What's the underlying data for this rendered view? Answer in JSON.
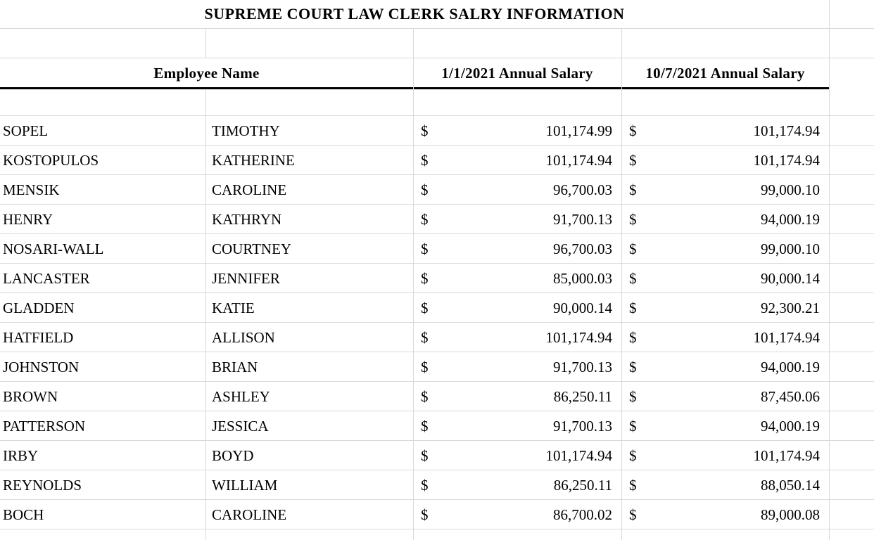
{
  "sheet": {
    "title": "SUPREME COURT LAW CLERK SALRY INFORMATION",
    "columns": {
      "employee_name": "Employee Name",
      "salary_jan": "1/1/2021 Annual Salary",
      "salary_oct": "10/7/2021 Annual Salary"
    },
    "currency_symbol": "$",
    "rows": [
      {
        "last": "SOPEL",
        "first": "TIMOTHY",
        "jan": "101,174.99",
        "oct": "101,174.94"
      },
      {
        "last": "KOSTOPULOS",
        "first": "KATHERINE",
        "jan": "101,174.94",
        "oct": "101,174.94"
      },
      {
        "last": "MENSIK",
        "first": "CAROLINE",
        "jan": "96,700.03",
        "oct": "99,000.10"
      },
      {
        "last": "HENRY",
        "first": "KATHRYN",
        "jan": "91,700.13",
        "oct": "94,000.19"
      },
      {
        "last": "NOSARI-WALL",
        "first": "COURTNEY",
        "jan": "96,700.03",
        "oct": "99,000.10"
      },
      {
        "last": "LANCASTER",
        "first": "JENNIFER",
        "jan": "85,000.03",
        "oct": "90,000.14"
      },
      {
        "last": "GLADDEN",
        "first": "KATIE",
        "jan": "90,000.14",
        "oct": "92,300.21"
      },
      {
        "last": "HATFIELD",
        "first": "ALLISON",
        "jan": "101,174.94",
        "oct": "101,174.94"
      },
      {
        "last": "JOHNSTON",
        "first": "BRIAN",
        "jan": "91,700.13",
        "oct": "94,000.19"
      },
      {
        "last": "BROWN",
        "first": "ASHLEY",
        "jan": "86,250.11",
        "oct": "87,450.06"
      },
      {
        "last": "PATTERSON",
        "first": "JESSICA",
        "jan": "91,700.13",
        "oct": "94,000.19"
      },
      {
        "last": "IRBY",
        "first": "BOYD",
        "jan": "101,174.94",
        "oct": "101,174.94"
      },
      {
        "last": "REYNOLDS",
        "first": "WILLIAM",
        "jan": "86,250.11",
        "oct": "88,050.14"
      },
      {
        "last": "BOCH",
        "first": "CAROLINE",
        "jan": "86,700.02",
        "oct": "89,000.08"
      }
    ],
    "colors": {
      "background": "#ffffff",
      "gridline": "#d9d9d9",
      "border": "#000000",
      "text": "#000000"
    },
    "layout": {
      "data_row_start_y": 166,
      "data_row_height": 42
    }
  }
}
